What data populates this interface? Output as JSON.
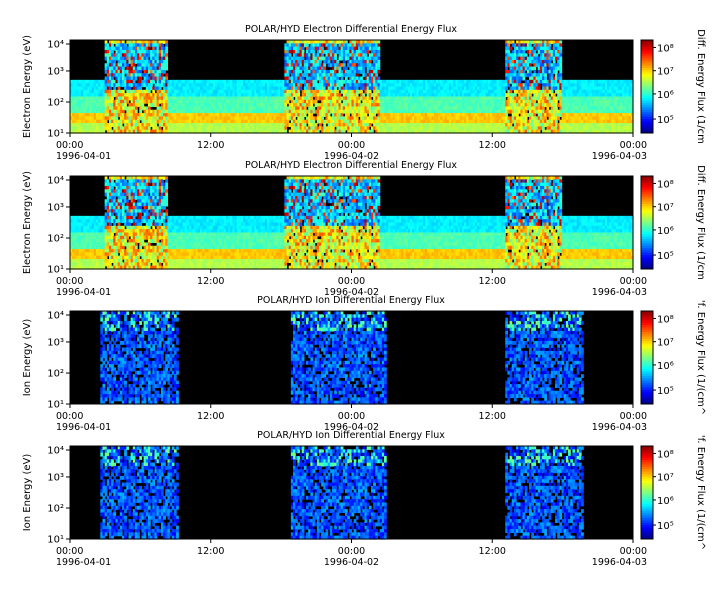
{
  "chart_data": [
    {
      "type": "heatmap",
      "title": "POLAR/HYD  Electron Differential Energy Flux",
      "ylabel": "Electron Energy (eV)",
      "colorbar_label": "Diff. Energy Flux (1/cm",
      "y_scale": "log",
      "ylim": [
        10,
        20000
      ],
      "y_ticks": [
        "10¹",
        "10²",
        "10³",
        "10⁴"
      ],
      "x_ticks": [
        "00:00",
        "12:00",
        "00:00",
        "12:00",
        "00:00"
      ],
      "date_labels": [
        "1996-04-01",
        "1996-04-02",
        "1996-04-03"
      ],
      "colorbar_ticks": [
        "10⁵",
        "10⁶",
        "10⁷",
        "10⁸"
      ]
    },
    {
      "type": "heatmap",
      "title": "POLAR/HYD  Electron Differential Energy Flux",
      "ylabel": "Electron Energy (eV)",
      "colorbar_label": "Diff. Energy Flux (1/cm",
      "y_scale": "log",
      "ylim": [
        10,
        20000
      ],
      "y_ticks": [
        "10¹",
        "10²",
        "10³",
        "10⁴"
      ],
      "x_ticks": [
        "00:00",
        "12:00",
        "00:00",
        "12:00",
        "00:00"
      ],
      "date_labels": [
        "1996-04-01",
        "1996-04-02",
        "1996-04-03"
      ],
      "colorbar_ticks": [
        "10⁵",
        "10⁶",
        "10⁷",
        "10⁸"
      ]
    },
    {
      "type": "heatmap",
      "title": "POLAR/HYD  Ion Differential Energy Flux",
      "ylabel": "Ion Energy (eV)",
      "colorbar_label": "'f. Energy Flux (1/(cm^",
      "y_scale": "log",
      "ylim": [
        10,
        20000
      ],
      "y_ticks": [
        "10¹",
        "10²",
        "10³",
        "10⁴"
      ],
      "x_ticks": [
        "00:00",
        "12:00",
        "00:00",
        "12:00",
        "00:00"
      ],
      "date_labels": [
        "1996-04-01",
        "1996-04-02",
        "1996-04-03"
      ],
      "colorbar_ticks": [
        "10⁵",
        "10⁶",
        "10⁷",
        "10⁸"
      ]
    },
    {
      "type": "heatmap",
      "title": "POLAR/HYD  Ion Differential Energy Flux",
      "ylabel": "Ion Energy (eV)",
      "colorbar_label": "'f. Energy Flux (1/(cm^",
      "y_scale": "log",
      "ylim": [
        10,
        20000
      ],
      "y_ticks": [
        "10¹",
        "10²",
        "10³",
        "10⁴"
      ],
      "x_ticks": [
        "00:00",
        "12:00",
        "00:00",
        "12:00",
        "00:00"
      ],
      "date_labels": [
        "1996-04-01",
        "1996-04-02",
        "1996-04-03"
      ],
      "colorbar_ticks": [
        "10⁵",
        "10⁶",
        "10⁷",
        "10⁸"
      ]
    }
  ]
}
